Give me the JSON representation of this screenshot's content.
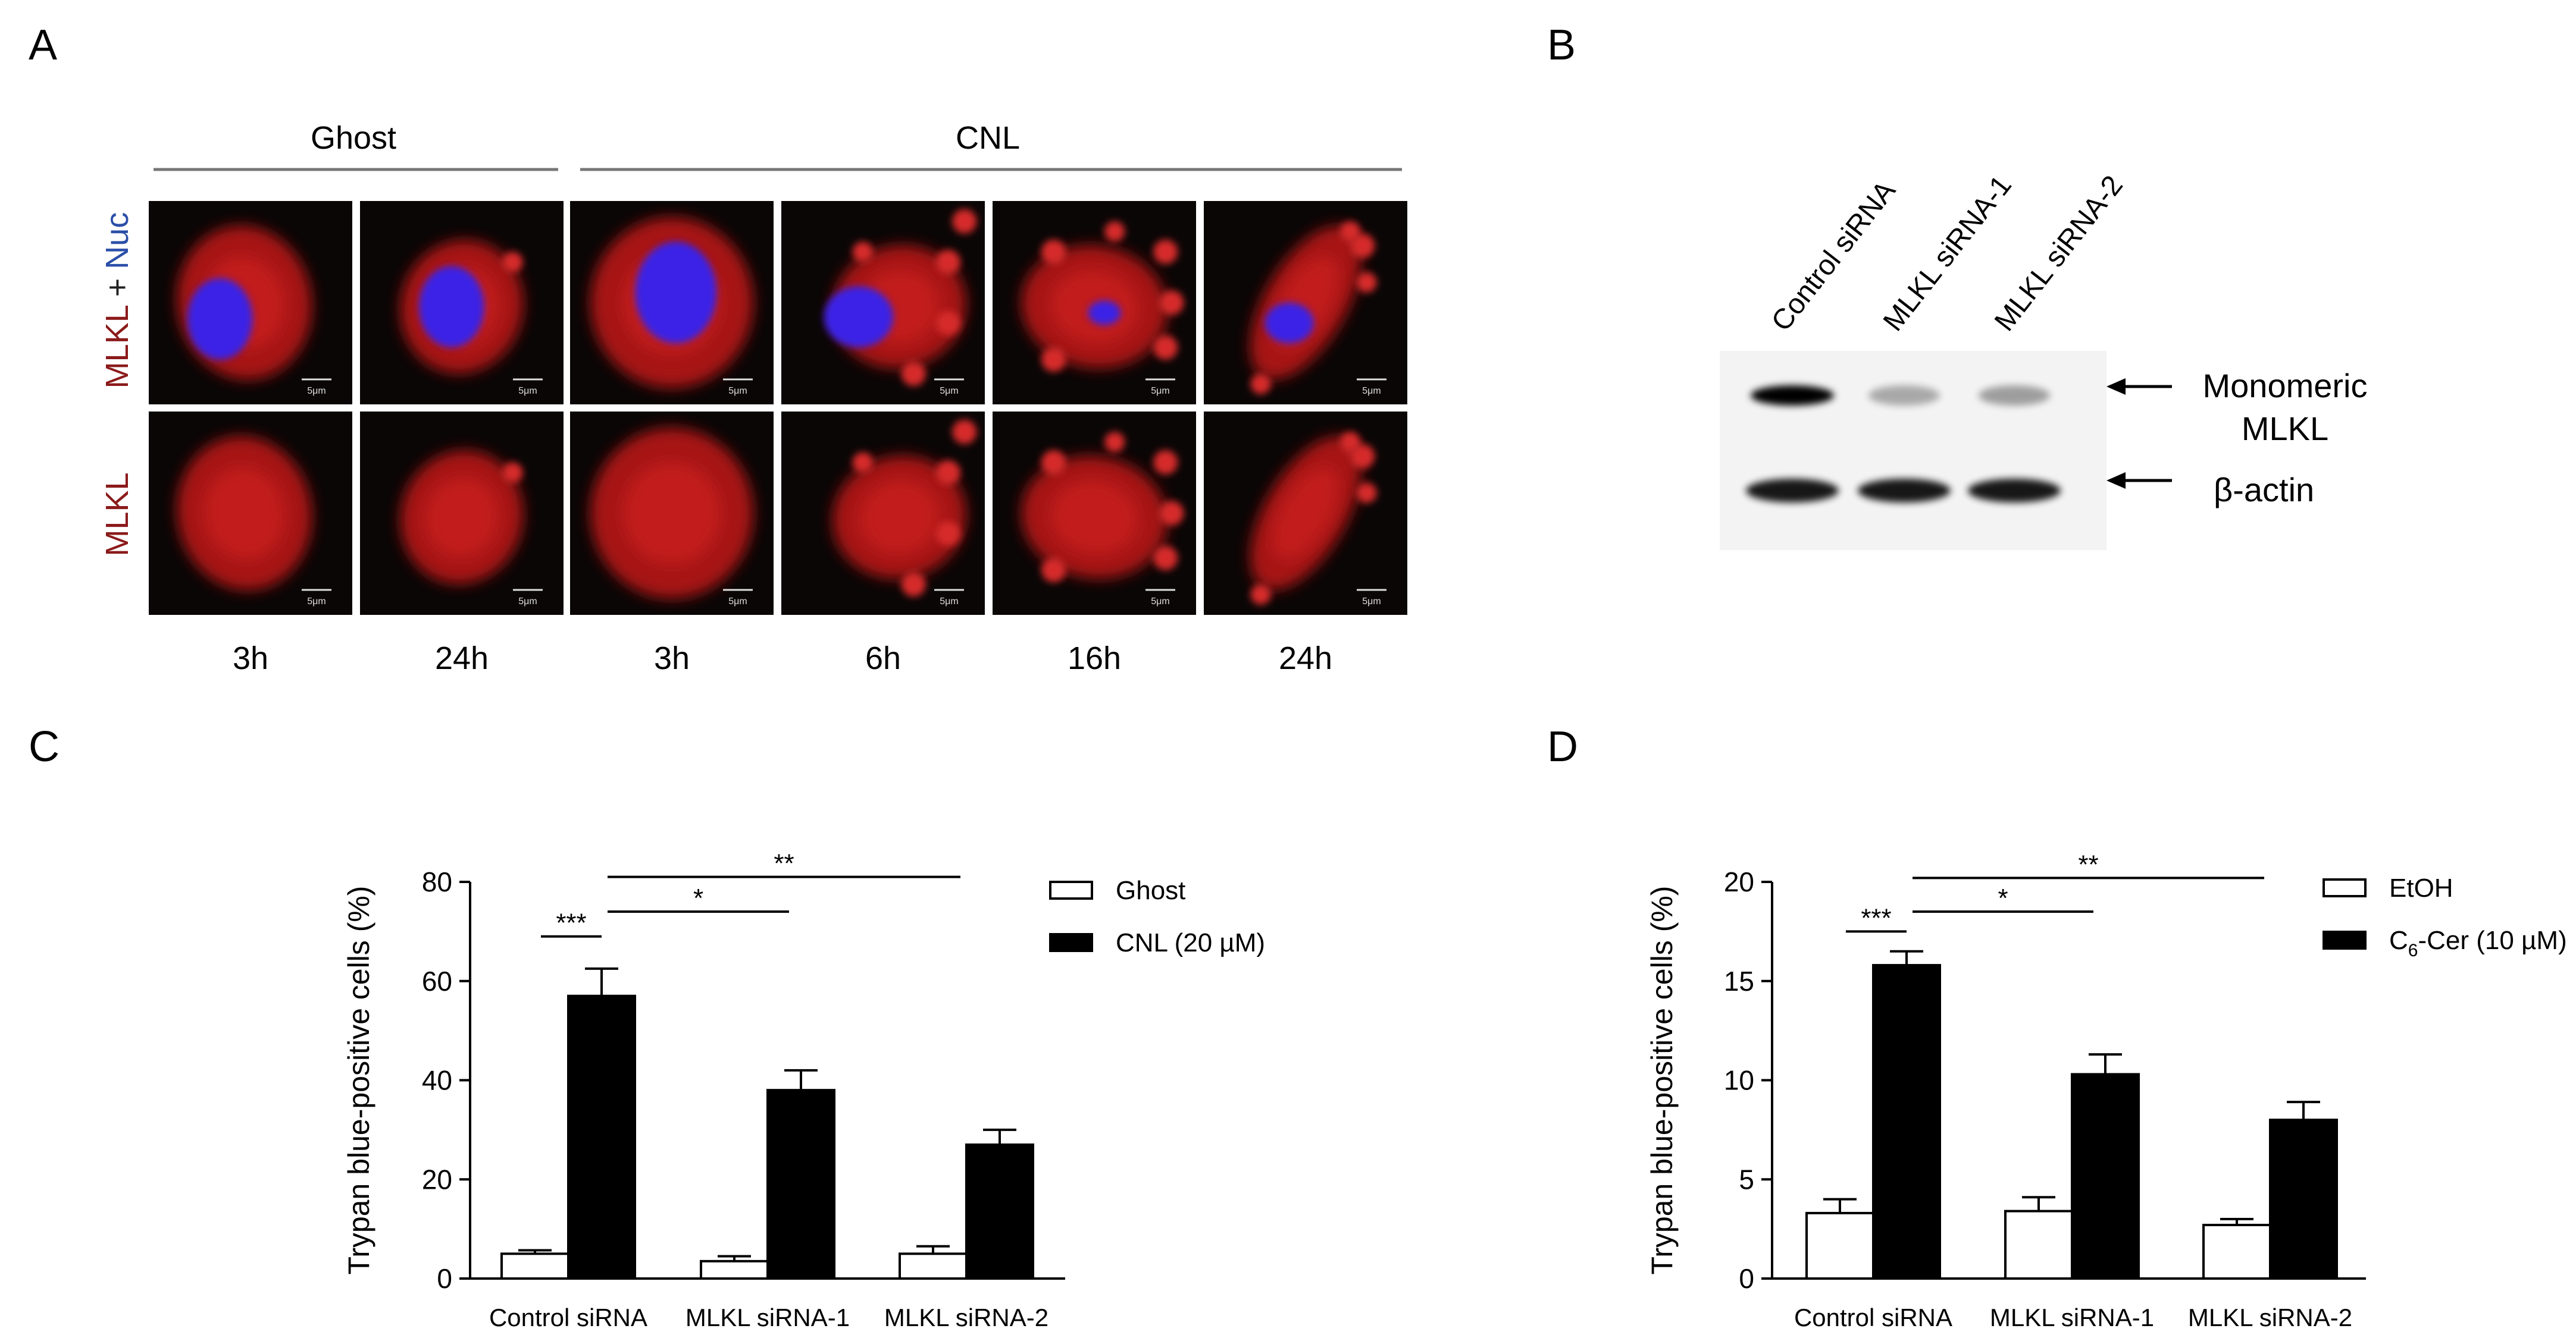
{
  "panels": {
    "A": {
      "letter": "A",
      "groups": [
        "Ghost",
        "CNL"
      ],
      "row_label_merged": {
        "part1": "MLKL",
        "plus": " + ",
        "part2": "Nuc"
      },
      "row_label_single": "MLKL",
      "timepoints": [
        "3h",
        "24h",
        "3h",
        "6h",
        "16h",
        "24h"
      ],
      "scale_bar": "5μm",
      "colors": {
        "mlkl": "#8b1a1a",
        "nuc": "#2b4fa8"
      }
    },
    "B": {
      "letter": "B",
      "lanes": [
        "Control siRNA",
        "MLKL siRNA-1",
        "MLKL siRNA-2"
      ],
      "bands": {
        "monomeric_mlkl": {
          "label_line1": "Monomeric",
          "label_line2": "MLKL",
          "intensity": [
            1.0,
            0.3,
            0.35
          ]
        },
        "beta_actin": {
          "label": "β-actin",
          "intensity": [
            1.0,
            1.0,
            1.0
          ]
        }
      }
    },
    "C": {
      "letter": "C"
    },
    "D": {
      "letter": "D"
    }
  },
  "chart_data": [
    {
      "type": "bar",
      "panel": "C",
      "ylabel": "Trypan blue-positive cells (%)",
      "categories": [
        "Control siRNA",
        "MLKL siRNA-1",
        "MLKL siRNA-2"
      ],
      "ylim": [
        0,
        80
      ],
      "yticks": [
        0,
        20,
        40,
        60,
        80
      ],
      "series": [
        {
          "name": "Ghost",
          "fill": "#ffffff",
          "values": [
            5,
            3.5,
            5
          ],
          "errors": [
            0.7,
            1.0,
            1.5
          ]
        },
        {
          "name": "CNL (20 µM)",
          "fill": "#000000",
          "values": [
            57,
            38,
            27
          ],
          "errors": [
            5.5,
            4,
            3
          ]
        }
      ],
      "legend": {
        "position": "top-right",
        "entries": [
          {
            "text": "Ghost"
          },
          {
            "text": "CNL (20 µM)"
          }
        ]
      },
      "significance": [
        {
          "label": "***",
          "from": 0,
          "to": 0,
          "y": 69
        },
        {
          "label": "*",
          "from": 0,
          "to": 1,
          "y": 74
        },
        {
          "label": "**",
          "from": 0,
          "to": 2,
          "y": 81
        }
      ]
    },
    {
      "type": "bar",
      "panel": "D",
      "ylabel": "Trypan blue-positive cells (%)",
      "categories": [
        "Control siRNA",
        "MLKL siRNA-1",
        "MLKL siRNA-2"
      ],
      "ylim": [
        0,
        20
      ],
      "yticks": [
        0,
        5,
        10,
        15,
        20
      ],
      "series": [
        {
          "name": "EtOH",
          "fill": "#ffffff",
          "values": [
            3.3,
            3.4,
            2.7
          ],
          "errors": [
            0.7,
            0.7,
            0.3
          ]
        },
        {
          "name": "C6-Cer (10 µM)",
          "fill": "#000000",
          "values": [
            15.8,
            10.3,
            8.0
          ],
          "errors": [
            0.7,
            1.0,
            0.9
          ]
        }
      ],
      "legend": {
        "position": "top-right",
        "entries": [
          {
            "text": "EtOH"
          },
          {
            "text": "C",
            "sub": "6",
            "rest": "-Cer (10 µM)"
          }
        ]
      },
      "significance": [
        {
          "label": "***",
          "from": 0,
          "to": 0,
          "y": 17.5
        },
        {
          "label": "*",
          "from": 0,
          "to": 1,
          "y": 18.5
        },
        {
          "label": "**",
          "from": 0,
          "to": 2,
          "y": 20.2
        }
      ]
    }
  ]
}
